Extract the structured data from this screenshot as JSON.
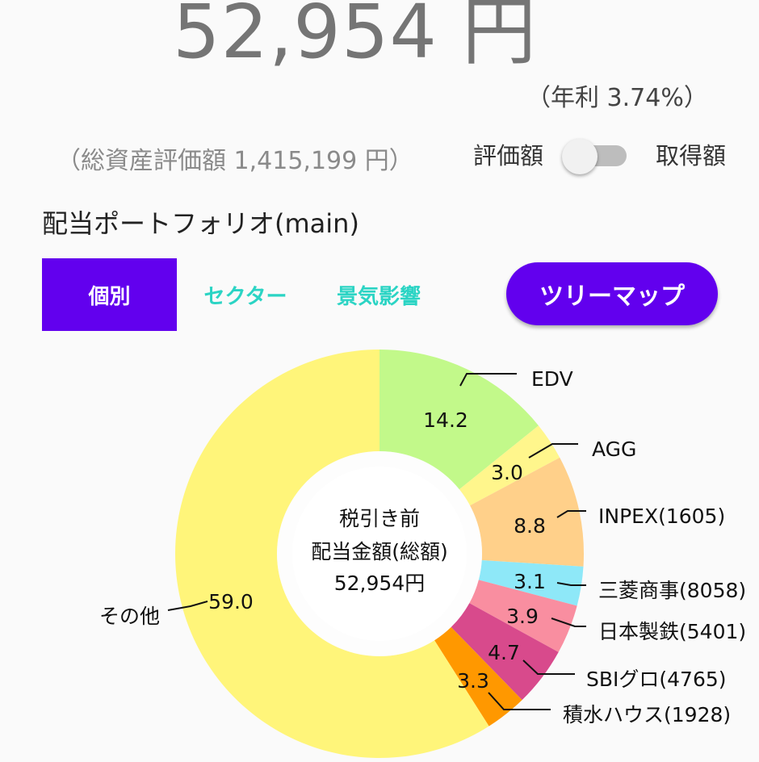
{
  "header": {
    "total_dividend": "52,954 円",
    "annual_yield": "（年利 3.74%）",
    "total_assets": "（総資産評価額 1,415,199 円）",
    "toggle_left_label": "評価額",
    "toggle_right_label": "取得額",
    "toggle_state": "評価額"
  },
  "portfolio": {
    "title": "配当ポートフォリオ(main)",
    "tabs": [
      {
        "label": "個別",
        "selected": true
      },
      {
        "label": "セクター",
        "selected": false
      },
      {
        "label": "景気影響",
        "selected": false
      }
    ],
    "treemap_button": "ツリーマップ"
  },
  "chart_data": {
    "type": "pie",
    "style": "donut",
    "center_text": [
      "税引き前",
      "配当金額(総額)",
      "52,954円"
    ],
    "slices": [
      {
        "label": "EDV",
        "value": 14.2,
        "value_label": "14.2",
        "color": "#c2f98a"
      },
      {
        "label": "AGG",
        "value": 3.0,
        "value_label": "3.0",
        "color": "#fff68c"
      },
      {
        "label": "INPEX(1605)",
        "value": 8.8,
        "value_label": "8.8",
        "color": "#ffd08a"
      },
      {
        "label": "三菱商事(8058)",
        "value": 3.1,
        "value_label": "3.1",
        "color": "#8ee8f8"
      },
      {
        "label": "日本製鉄(5401)",
        "value": 3.9,
        "value_label": "3.9",
        "color": "#f98ea0"
      },
      {
        "label": "SBIグロ(4765)",
        "value": 4.7,
        "value_label": "4.7",
        "color": "#d84a8c"
      },
      {
        "label": "積水ハウス(1928)",
        "value": 3.3,
        "value_label": "3.3",
        "color": "#ff9800"
      },
      {
        "label": "その他",
        "value": 59.0,
        "value_label": "59.0",
        "color": "#fff57a"
      }
    ]
  }
}
